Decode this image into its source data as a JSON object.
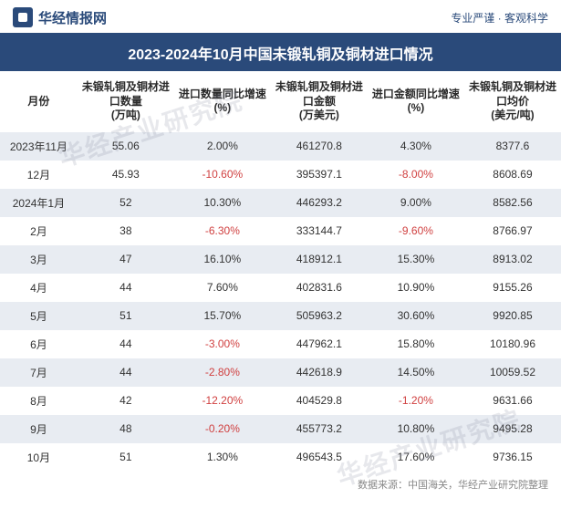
{
  "header": {
    "site_name": "华经情报网",
    "tagline": "专业严谨 · 客观科学"
  },
  "title": "2023-2024年10月中国未锻轧铜及铜材进口情况",
  "watermark_text": "华经产业研究院",
  "columns": [
    "月份",
    "未锻轧铜及铜材进口数量\n(万吨)",
    "进口数量同比增速\n(%)",
    "未锻轧铜及铜材进口金额\n(万美元)",
    "进口金额同比增速\n(%)",
    "未锻轧铜及铜材进口均价\n(美元/吨)"
  ],
  "rows": [
    {
      "month": "2023年11月",
      "qty": "55.06",
      "qty_g": "2.00%",
      "qty_g_neg": false,
      "amt": "461270.8",
      "amt_g": "4.30%",
      "amt_g_neg": false,
      "price": "8377.6"
    },
    {
      "month": "12月",
      "qty": "45.93",
      "qty_g": "-10.60%",
      "qty_g_neg": true,
      "amt": "395397.1",
      "amt_g": "-8.00%",
      "amt_g_neg": true,
      "price": "8608.69"
    },
    {
      "month": "2024年1月",
      "qty": "52",
      "qty_g": "10.30%",
      "qty_g_neg": false,
      "amt": "446293.2",
      "amt_g": "9.00%",
      "amt_g_neg": false,
      "price": "8582.56"
    },
    {
      "month": "2月",
      "qty": "38",
      "qty_g": "-6.30%",
      "qty_g_neg": true,
      "amt": "333144.7",
      "amt_g": "-9.60%",
      "amt_g_neg": true,
      "price": "8766.97"
    },
    {
      "month": "3月",
      "qty": "47",
      "qty_g": "16.10%",
      "qty_g_neg": false,
      "amt": "418912.1",
      "amt_g": "15.30%",
      "amt_g_neg": false,
      "price": "8913.02"
    },
    {
      "month": "4月",
      "qty": "44",
      "qty_g": "7.60%",
      "qty_g_neg": false,
      "amt": "402831.6",
      "amt_g": "10.90%",
      "amt_g_neg": false,
      "price": "9155.26"
    },
    {
      "month": "5月",
      "qty": "51",
      "qty_g": "15.70%",
      "qty_g_neg": false,
      "amt": "505963.2",
      "amt_g": "30.60%",
      "amt_g_neg": false,
      "price": "9920.85"
    },
    {
      "month": "6月",
      "qty": "44",
      "qty_g": "-3.00%",
      "qty_g_neg": true,
      "amt": "447962.1",
      "amt_g": "15.80%",
      "amt_g_neg": false,
      "price": "10180.96"
    },
    {
      "month": "7月",
      "qty": "44",
      "qty_g": "-2.80%",
      "qty_g_neg": true,
      "amt": "442618.9",
      "amt_g": "14.50%",
      "amt_g_neg": false,
      "price": "10059.52"
    },
    {
      "month": "8月",
      "qty": "42",
      "qty_g": "-12.20%",
      "qty_g_neg": true,
      "amt": "404529.8",
      "amt_g": "-1.20%",
      "amt_g_neg": true,
      "price": "9631.66"
    },
    {
      "month": "9月",
      "qty": "48",
      "qty_g": "-0.20%",
      "qty_g_neg": true,
      "amt": "455773.2",
      "amt_g": "10.80%",
      "amt_g_neg": false,
      "price": "9495.28"
    },
    {
      "month": "10月",
      "qty": "51",
      "qty_g": "1.30%",
      "qty_g_neg": false,
      "amt": "496543.5",
      "amt_g": "17.60%",
      "amt_g_neg": false,
      "price": "9736.15"
    }
  ],
  "footer": "数据来源：中国海关，华经产业研究院整理",
  "colors": {
    "brand": "#2a4a7a",
    "stripe": "#e8ecf2",
    "negative": "#d04040",
    "text": "#333333"
  }
}
